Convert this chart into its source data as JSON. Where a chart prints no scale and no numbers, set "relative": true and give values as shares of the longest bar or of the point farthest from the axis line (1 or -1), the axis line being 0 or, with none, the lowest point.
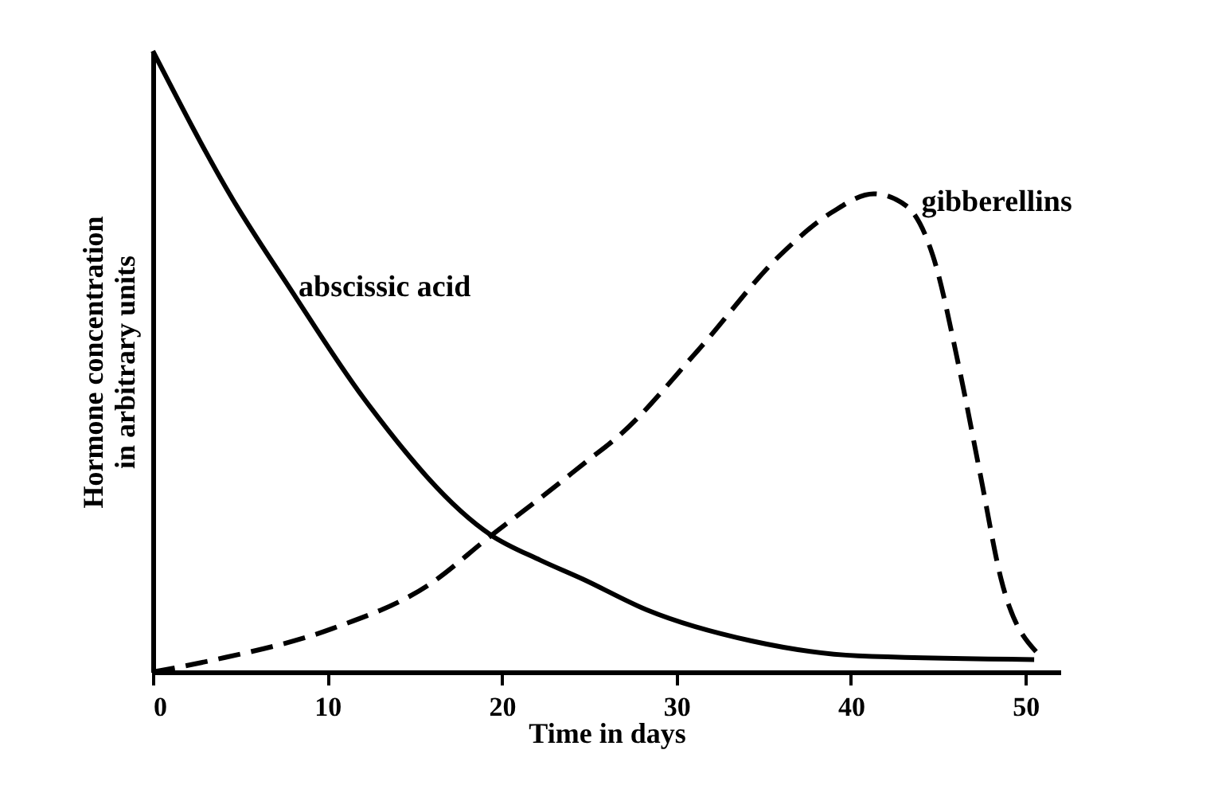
{
  "chart_data": {
    "type": "line",
    "relative": true,
    "xlabel": "Time in days",
    "ylabel": "Hormone concentration\nin arbitrary units",
    "xlim": [
      0,
      52
    ],
    "xticks": [
      0,
      10,
      20,
      30,
      40,
      50
    ],
    "series": [
      {
        "name": "abscissic acid",
        "color": "#000000",
        "line_style": "solid",
        "x": [
          0,
          4.6,
          7.8,
          12.1,
          19.4,
          22.2,
          24.6,
          28.3,
          34.3,
          40.4,
          50.5
        ],
        "values": [
          1,
          0.76,
          0.62,
          0.44,
          0.22,
          0.18,
          0.15,
          0.1,
          0.05,
          0.026,
          0.02
        ]
      },
      {
        "name": "gibberellins",
        "color": "#000000",
        "line_style": "dashed",
        "x": [
          0,
          3.6,
          10.3,
          15.8,
          19.4,
          22.2,
          24.9,
          26.7,
          31.3,
          35.9,
          38.9,
          41.3,
          43.2,
          44.7,
          46.2,
          47.4,
          48.6,
          50.7
        ],
        "values": [
          0,
          0.02,
          0.07,
          0.14,
          0.22,
          0.28,
          0.34,
          0.38,
          0.52,
          0.67,
          0.74,
          0.77,
          0.75,
          0.67,
          0.49,
          0.32,
          0.15,
          0.03
        ]
      }
    ]
  }
}
